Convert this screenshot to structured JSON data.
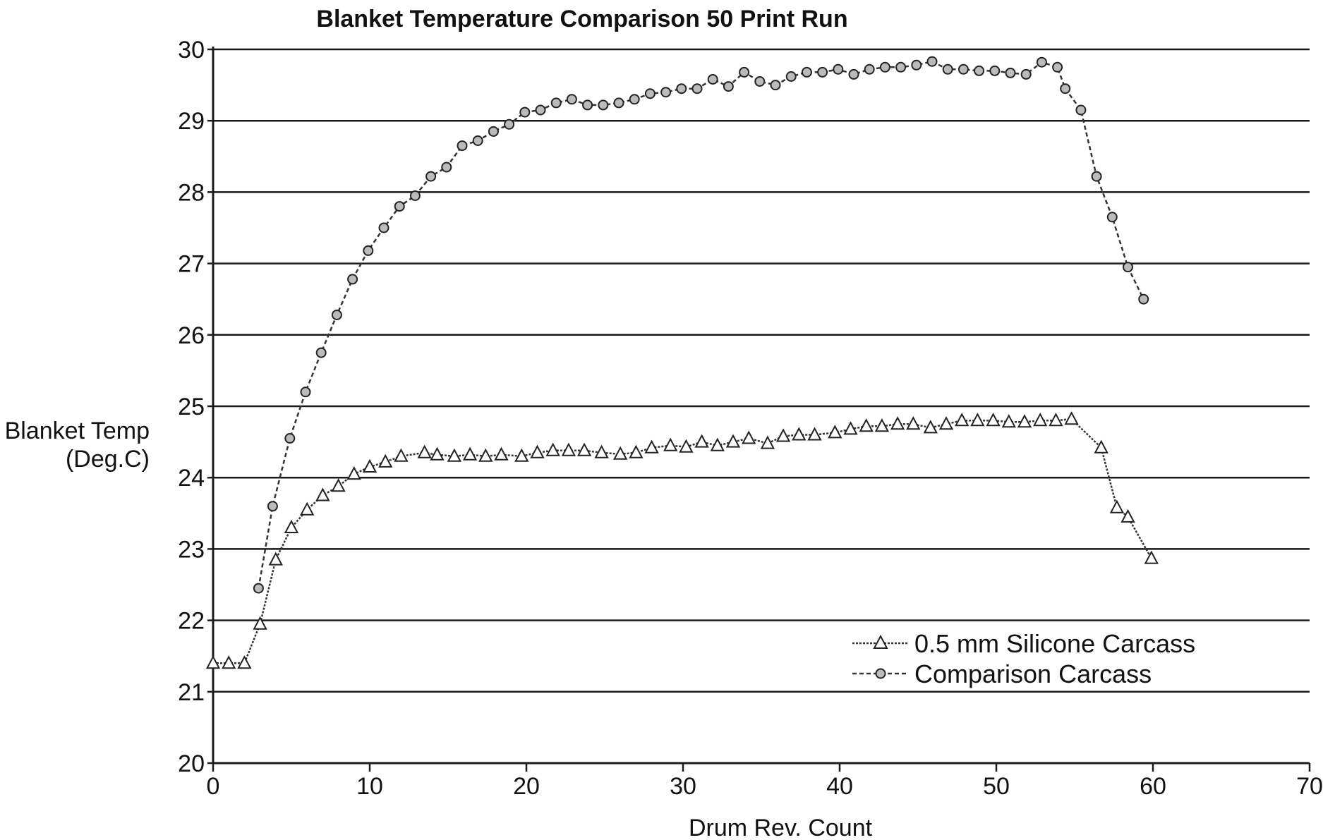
{
  "chart_data": {
    "type": "line",
    "title": "Blanket Temperature Comparison 50 Print Run",
    "xlabel": "Drum Rev. Count",
    "ylabel": [
      "Blanket Temp",
      "(Deg.C)"
    ],
    "xlim": [
      0,
      70
    ],
    "ylim": [
      20,
      30
    ],
    "xticks": [
      0,
      10,
      20,
      30,
      40,
      50,
      60,
      70
    ],
    "yticks": [
      20,
      21,
      22,
      23,
      24,
      25,
      26,
      27,
      28,
      29,
      30
    ],
    "grid": "horizontal",
    "legend_position": "bottom-right",
    "series": [
      {
        "name": "0.5 mm Silicone Carcass",
        "marker": "triangle",
        "line_style": "dotted",
        "x": [
          0,
          1,
          2,
          3,
          4,
          5,
          6,
          7,
          8,
          9,
          10,
          11,
          12,
          13.5,
          14.3,
          15.4,
          16.4,
          17.4,
          18.4,
          19.7,
          20.7,
          21.7,
          22.7,
          23.7,
          24.8,
          26,
          27,
          28,
          29.2,
          30.2,
          31.2,
          32.2,
          33.2,
          34.2,
          35.4,
          36.4,
          37.4,
          38.4,
          39.7,
          40.7,
          41.7,
          42.7,
          43.7,
          44.7,
          45.8,
          46.8,
          47.8,
          48.8,
          49.8,
          50.8,
          51.8,
          52.8,
          53.8,
          54.8,
          56.7,
          57.7,
          58.4,
          59.9
        ],
        "y": [
          21.4,
          21.4,
          21.4,
          21.95,
          22.85,
          23.3,
          23.55,
          23.75,
          23.88,
          24.05,
          24.15,
          24.22,
          24.3,
          24.35,
          24.32,
          24.3,
          24.32,
          24.3,
          24.32,
          24.3,
          24.35,
          24.38,
          24.38,
          24.38,
          24.35,
          24.33,
          24.35,
          24.42,
          24.45,
          24.43,
          24.5,
          24.45,
          24.5,
          24.55,
          24.48,
          24.58,
          24.6,
          24.6,
          24.63,
          24.68,
          24.72,
          24.72,
          24.75,
          24.75,
          24.7,
          24.75,
          24.8,
          24.8,
          24.8,
          24.78,
          24.78,
          24.8,
          24.8,
          24.82,
          24.42,
          23.58,
          23.45,
          22.87
        ]
      },
      {
        "name": "Comparison Carcass",
        "marker": "circle",
        "line_style": "dashed",
        "x": [
          2.9,
          3.8,
          4.9,
          5.9,
          6.9,
          7.9,
          8.9,
          9.9,
          10.9,
          11.9,
          12.9,
          13.9,
          14.9,
          15.9,
          16.9,
          17.9,
          18.9,
          19.9,
          20.9,
          21.9,
          22.9,
          23.9,
          24.9,
          25.9,
          26.9,
          27.9,
          28.9,
          29.9,
          30.9,
          31.9,
          32.9,
          33.9,
          34.9,
          35.9,
          36.9,
          37.9,
          38.9,
          39.9,
          40.9,
          41.9,
          42.9,
          43.9,
          44.9,
          45.9,
          46.9,
          47.9,
          48.9,
          49.9,
          50.9,
          51.9,
          52.9,
          53.9,
          54.4,
          55.4,
          56.4,
          57.4,
          58.4,
          59.4
        ],
        "y": [
          22.45,
          23.6,
          24.55,
          25.2,
          25.75,
          26.28,
          26.78,
          27.18,
          27.5,
          27.8,
          27.95,
          28.22,
          28.35,
          28.65,
          28.72,
          28.85,
          28.95,
          29.12,
          29.15,
          29.25,
          29.3,
          29.22,
          29.22,
          29.25,
          29.3,
          29.38,
          29.4,
          29.45,
          29.45,
          29.58,
          29.48,
          29.68,
          29.55,
          29.5,
          29.62,
          29.68,
          29.68,
          29.72,
          29.65,
          29.72,
          29.75,
          29.75,
          29.78,
          29.83,
          29.72,
          29.72,
          29.7,
          29.7,
          29.67,
          29.65,
          29.82,
          29.75,
          29.45,
          29.15,
          28.22,
          27.65,
          26.95,
          26.5
        ]
      }
    ]
  },
  "legend": {
    "items": [
      {
        "label": "0.5 mm Silicone Carcass"
      },
      {
        "label": "Comparison Carcass"
      }
    ]
  }
}
